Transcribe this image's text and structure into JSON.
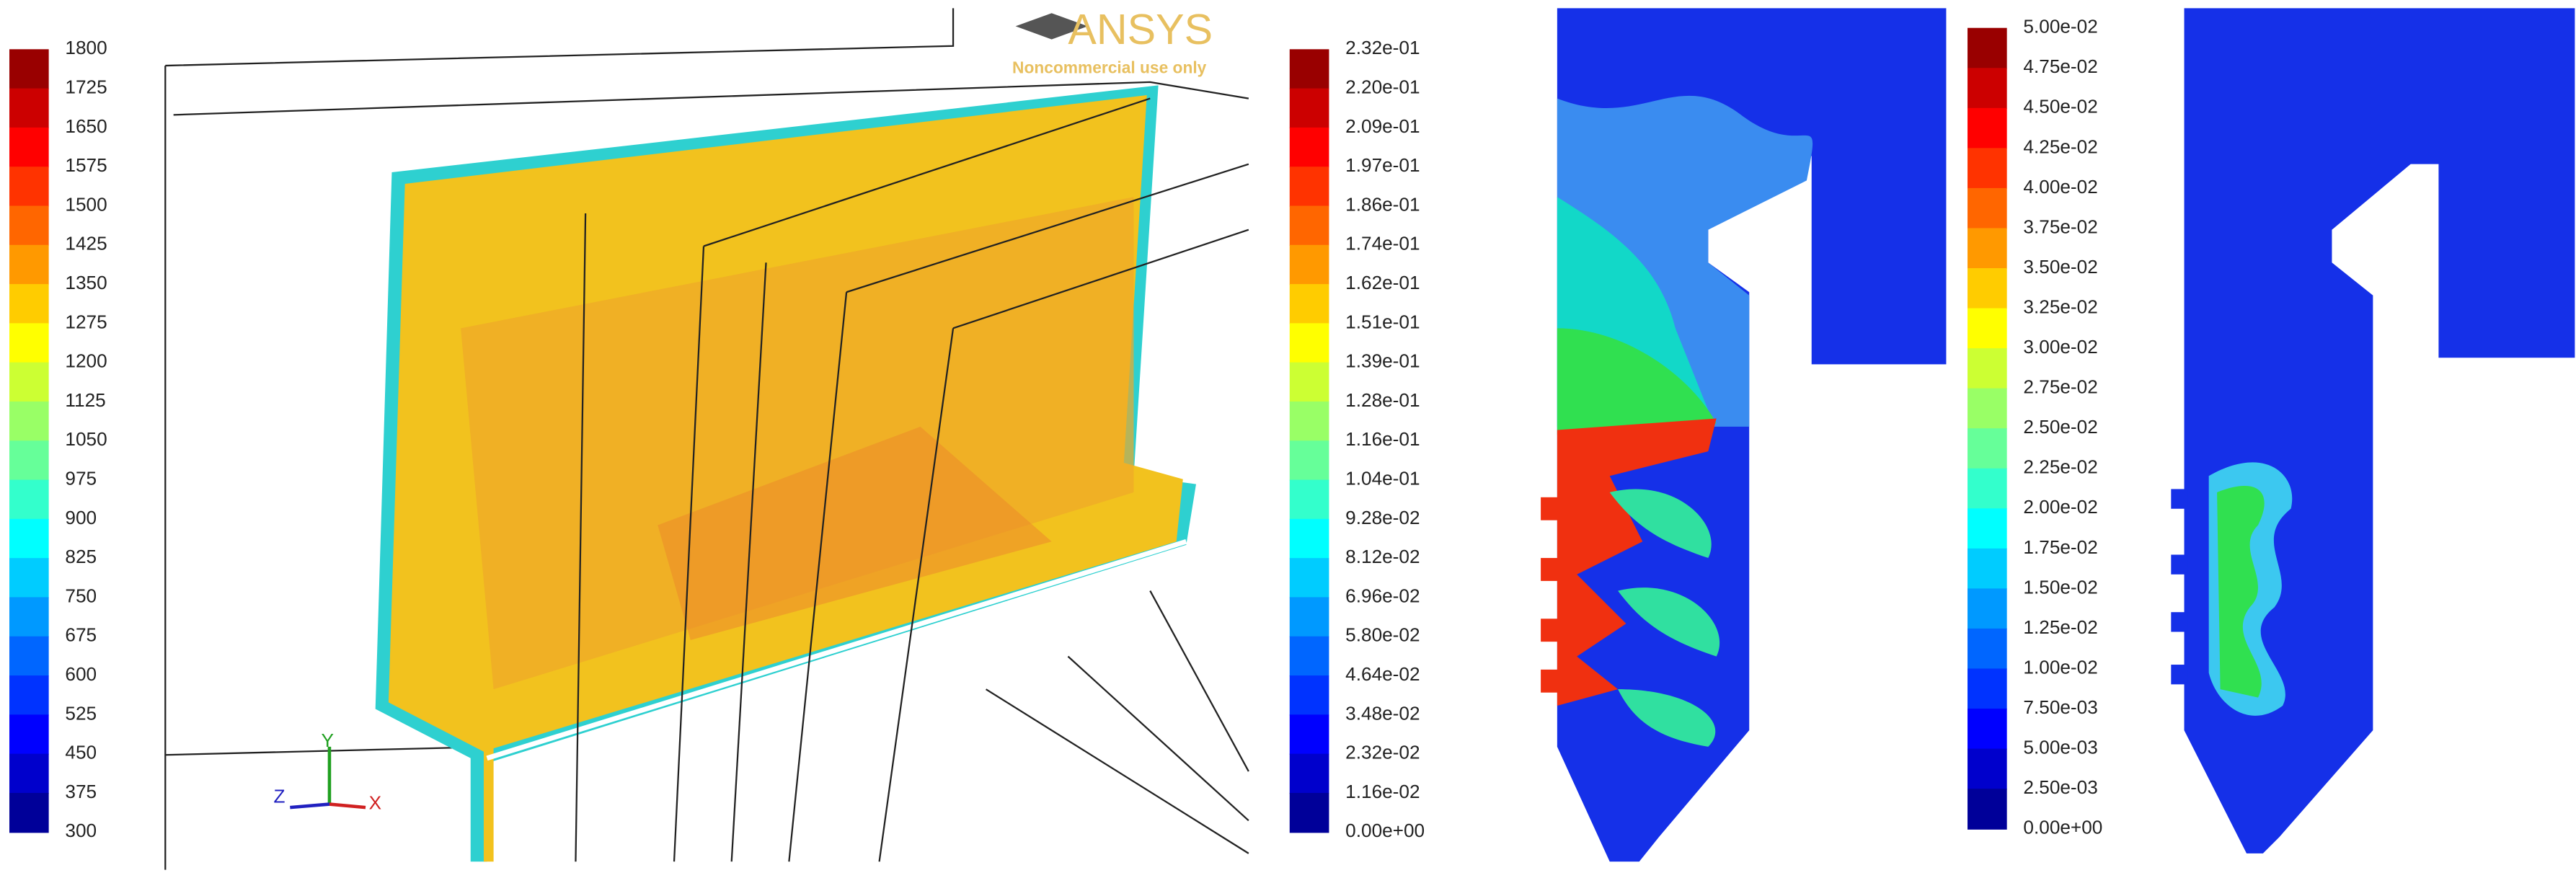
{
  "panels": [
    {
      "colorbar": {
        "labels": [
          "1800",
          "1725",
          "1650",
          "1575",
          "1500",
          "1425",
          "1350",
          "1275",
          "1200",
          "1125",
          "1050",
          "975",
          "900",
          "825",
          "750",
          "675",
          "600",
          "525",
          "450",
          "375",
          "300"
        ]
      }
    },
    {
      "colorbar": {
        "labels": [
          "2.32e-01",
          "2.20e-01",
          "2.09e-01",
          "1.97e-01",
          "1.86e-01",
          "1.74e-01",
          "1.62e-01",
          "1.51e-01",
          "1.39e-01",
          "1.28e-01",
          "1.16e-01",
          "1.04e-01",
          "9.28e-02",
          "8.12e-02",
          "6.96e-02",
          "5.80e-02",
          "4.64e-02",
          "3.48e-02",
          "2.32e-02",
          "1.16e-02",
          "0.00e+00"
        ]
      }
    },
    {
      "colorbar": {
        "labels": [
          "5.00e-02",
          "4.75e-02",
          "4.50e-02",
          "4.25e-02",
          "4.00e-02",
          "3.75e-02",
          "3.50e-02",
          "3.25e-02",
          "3.00e-02",
          "2.75e-02",
          "2.50e-02",
          "2.25e-02",
          "2.00e-02",
          "1.75e-02",
          "1.50e-02",
          "1.25e-02",
          "1.00e-02",
          "7.50e-03",
          "5.00e-03",
          "2.50e-03",
          "0.00e+00"
        ]
      }
    }
  ],
  "logo": {
    "name": "ANSYS",
    "note": "Noncommercial use only"
  },
  "triad": {
    "y": "Y",
    "z": "Z",
    "x": "X"
  }
}
